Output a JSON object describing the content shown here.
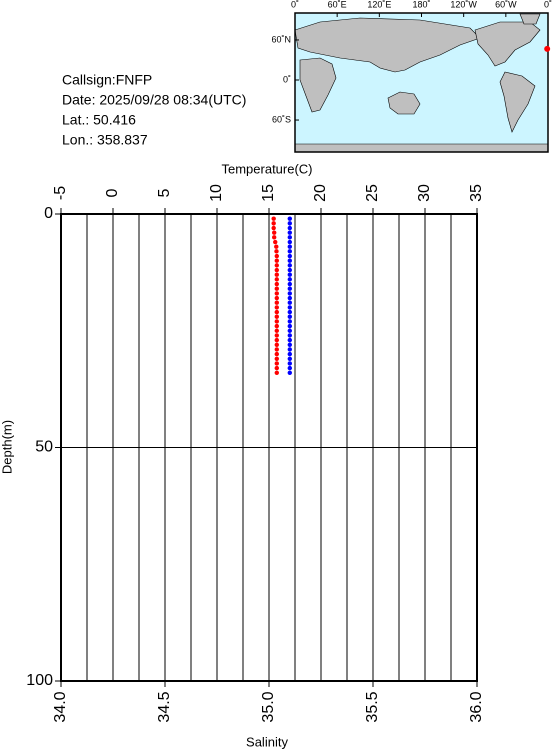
{
  "chart_data": {
    "type": "profile",
    "xlabel": "Temperature(C)",
    "x2label": "Salinity",
    "ylabel": "Depth(m)",
    "xlim": [
      -5,
      35
    ],
    "xticks": [
      -5,
      0,
      5,
      10,
      15,
      20,
      25,
      30,
      35
    ],
    "xminorticks": [
      -2.5,
      2.5,
      7.5,
      12.5,
      17.5,
      22.5,
      27.5,
      32.5
    ],
    "x2lim": [
      34.0,
      36.0
    ],
    "x2ticks": [
      {
        "value": 34.0,
        "label": "34.0"
      },
      {
        "value": 34.5,
        "label": "34.5"
      },
      {
        "value": 35.0,
        "label": "35.0"
      },
      {
        "value": 35.5,
        "label": "35.5"
      },
      {
        "value": 36.0,
        "label": "36.0"
      }
    ],
    "ylim": [
      0,
      100
    ],
    "yticks": [
      0,
      50,
      100
    ],
    "y_inverted": true,
    "grid": true,
    "y": [
      1,
      2,
      3,
      4,
      5,
      6,
      7,
      8,
      9,
      10,
      11,
      12,
      13,
      14,
      15,
      16,
      17,
      18,
      19,
      20,
      21,
      22,
      23,
      24,
      25,
      26,
      27,
      28,
      29,
      30,
      31,
      32,
      33,
      34
    ],
    "series": [
      {
        "color": "#ff0000",
        "axis": "x",
        "values": [
          15.45,
          15.45,
          15.45,
          15.5,
          15.5,
          15.6,
          15.7,
          15.72,
          15.75,
          15.75,
          15.75,
          15.75,
          15.75,
          15.75,
          15.75,
          15.75,
          15.75,
          15.75,
          15.75,
          15.75,
          15.75,
          15.75,
          15.75,
          15.75,
          15.75,
          15.75,
          15.75,
          15.75,
          15.75,
          15.75,
          15.75,
          15.75,
          15.75,
          15.75
        ]
      },
      {
        "color": "#0000ff",
        "axis": "x2",
        "values": [
          35.1,
          35.1,
          35.1,
          35.1,
          35.1,
          35.1,
          35.1,
          35.1,
          35.1,
          35.1,
          35.1,
          35.1,
          35.1,
          35.1,
          35.1,
          35.1,
          35.1,
          35.1,
          35.1,
          35.1,
          35.1,
          35.1,
          35.1,
          35.1,
          35.1,
          35.1,
          35.1,
          35.1,
          35.1,
          35.1,
          35.1,
          35.1,
          35.1,
          35.1
        ]
      }
    ],
    "annotations": [
      "Callsign:FNFP",
      "Date:  2025/09/28 08:34(UTC)",
      "Lat.:  50.416",
      "Lon.:  358.837"
    ]
  },
  "map": {
    "lon_ticks": [
      {
        "value": 0,
        "label": "0˚"
      },
      {
        "value": 60,
        "label": "60˚E"
      },
      {
        "value": 120,
        "label": "120˚E"
      },
      {
        "value": 180,
        "label": "180˚"
      },
      {
        "value": 240,
        "label": "120˚W"
      },
      {
        "value": 300,
        "label": "60˚W"
      },
      {
        "value": 360,
        "label": "0˚"
      }
    ],
    "lat_ticks": [
      {
        "value": 60,
        "label": "60˚N"
      },
      {
        "value": 0,
        "label": "0˚"
      },
      {
        "value": -60,
        "label": "60˚S"
      }
    ],
    "marker_lon": 358.837,
    "marker_lat": 50.416,
    "marker_color": "#ff0000"
  }
}
